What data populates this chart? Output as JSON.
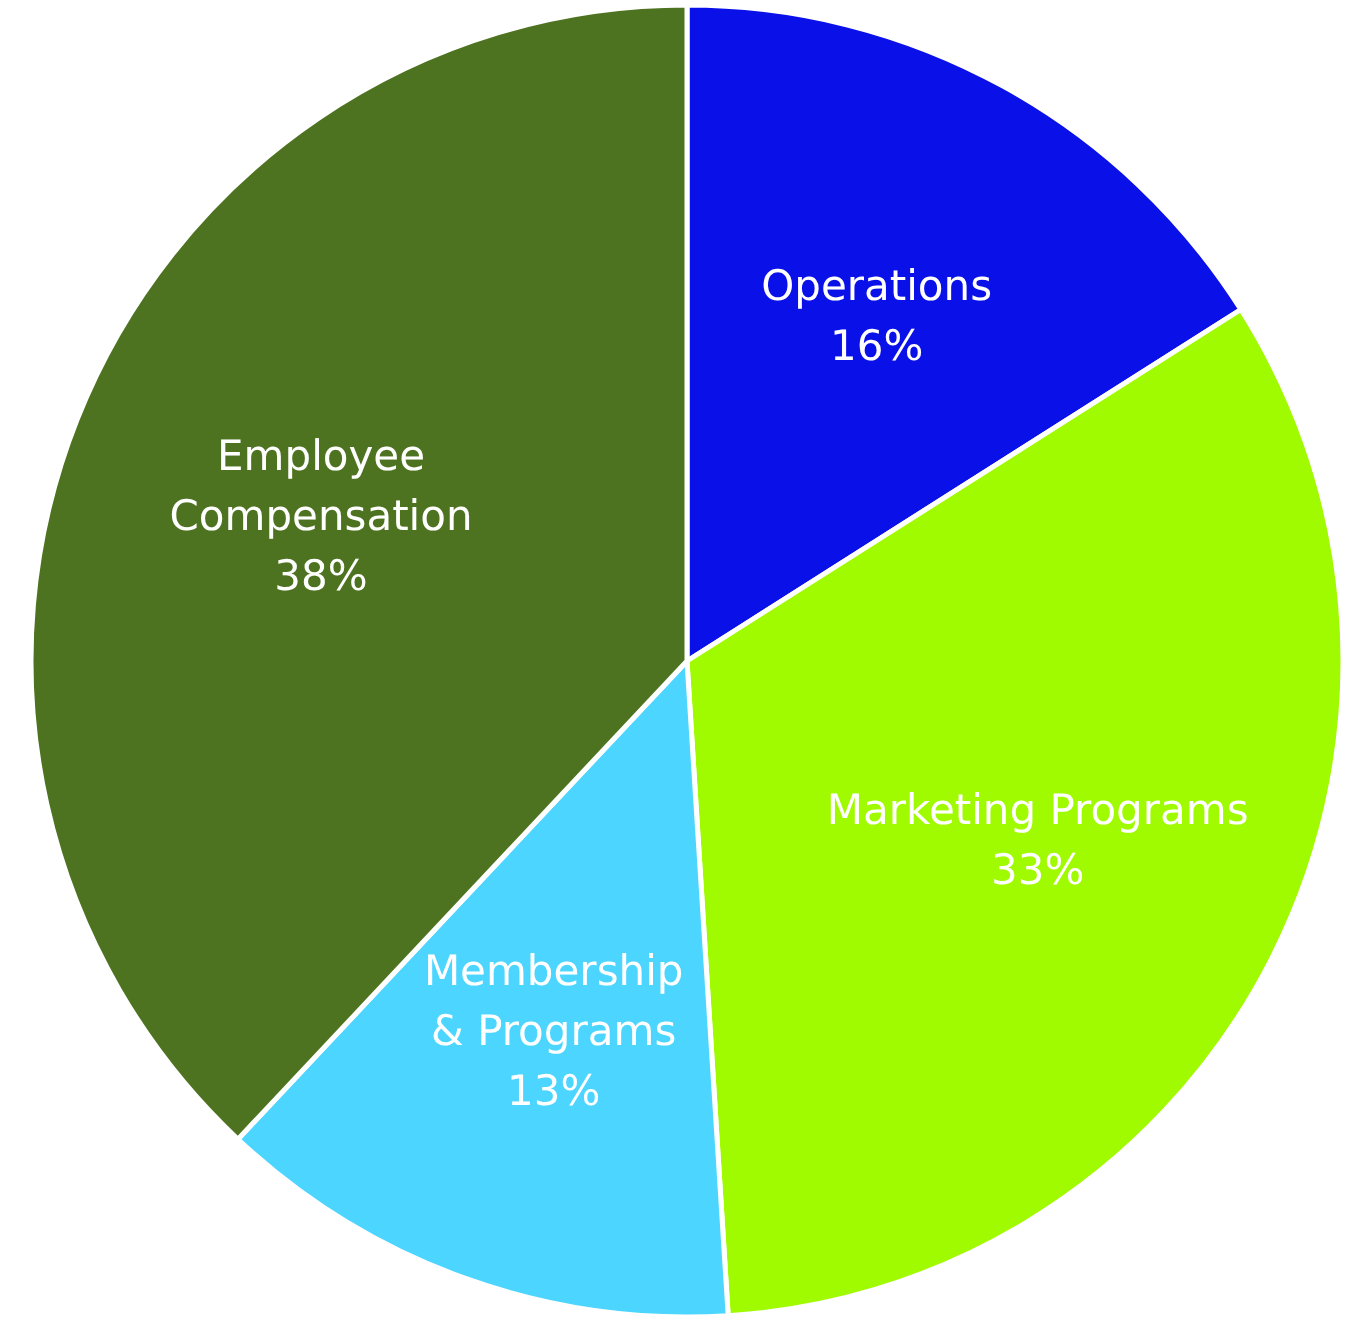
{
  "chart_data": {
    "type": "pie",
    "categories": [
      "Operations",
      "Marketing Programs",
      "Membership\n& Programs",
      "Employee\nCompensation"
    ],
    "values": [
      16,
      33,
      13,
      38
    ],
    "colors": [
      "#0a10e8",
      "#a0fa00",
      "#4cd5ff",
      "#4e7320"
    ],
    "value_labels": [
      "16%",
      "33%",
      "13%",
      "38%"
    ]
  }
}
